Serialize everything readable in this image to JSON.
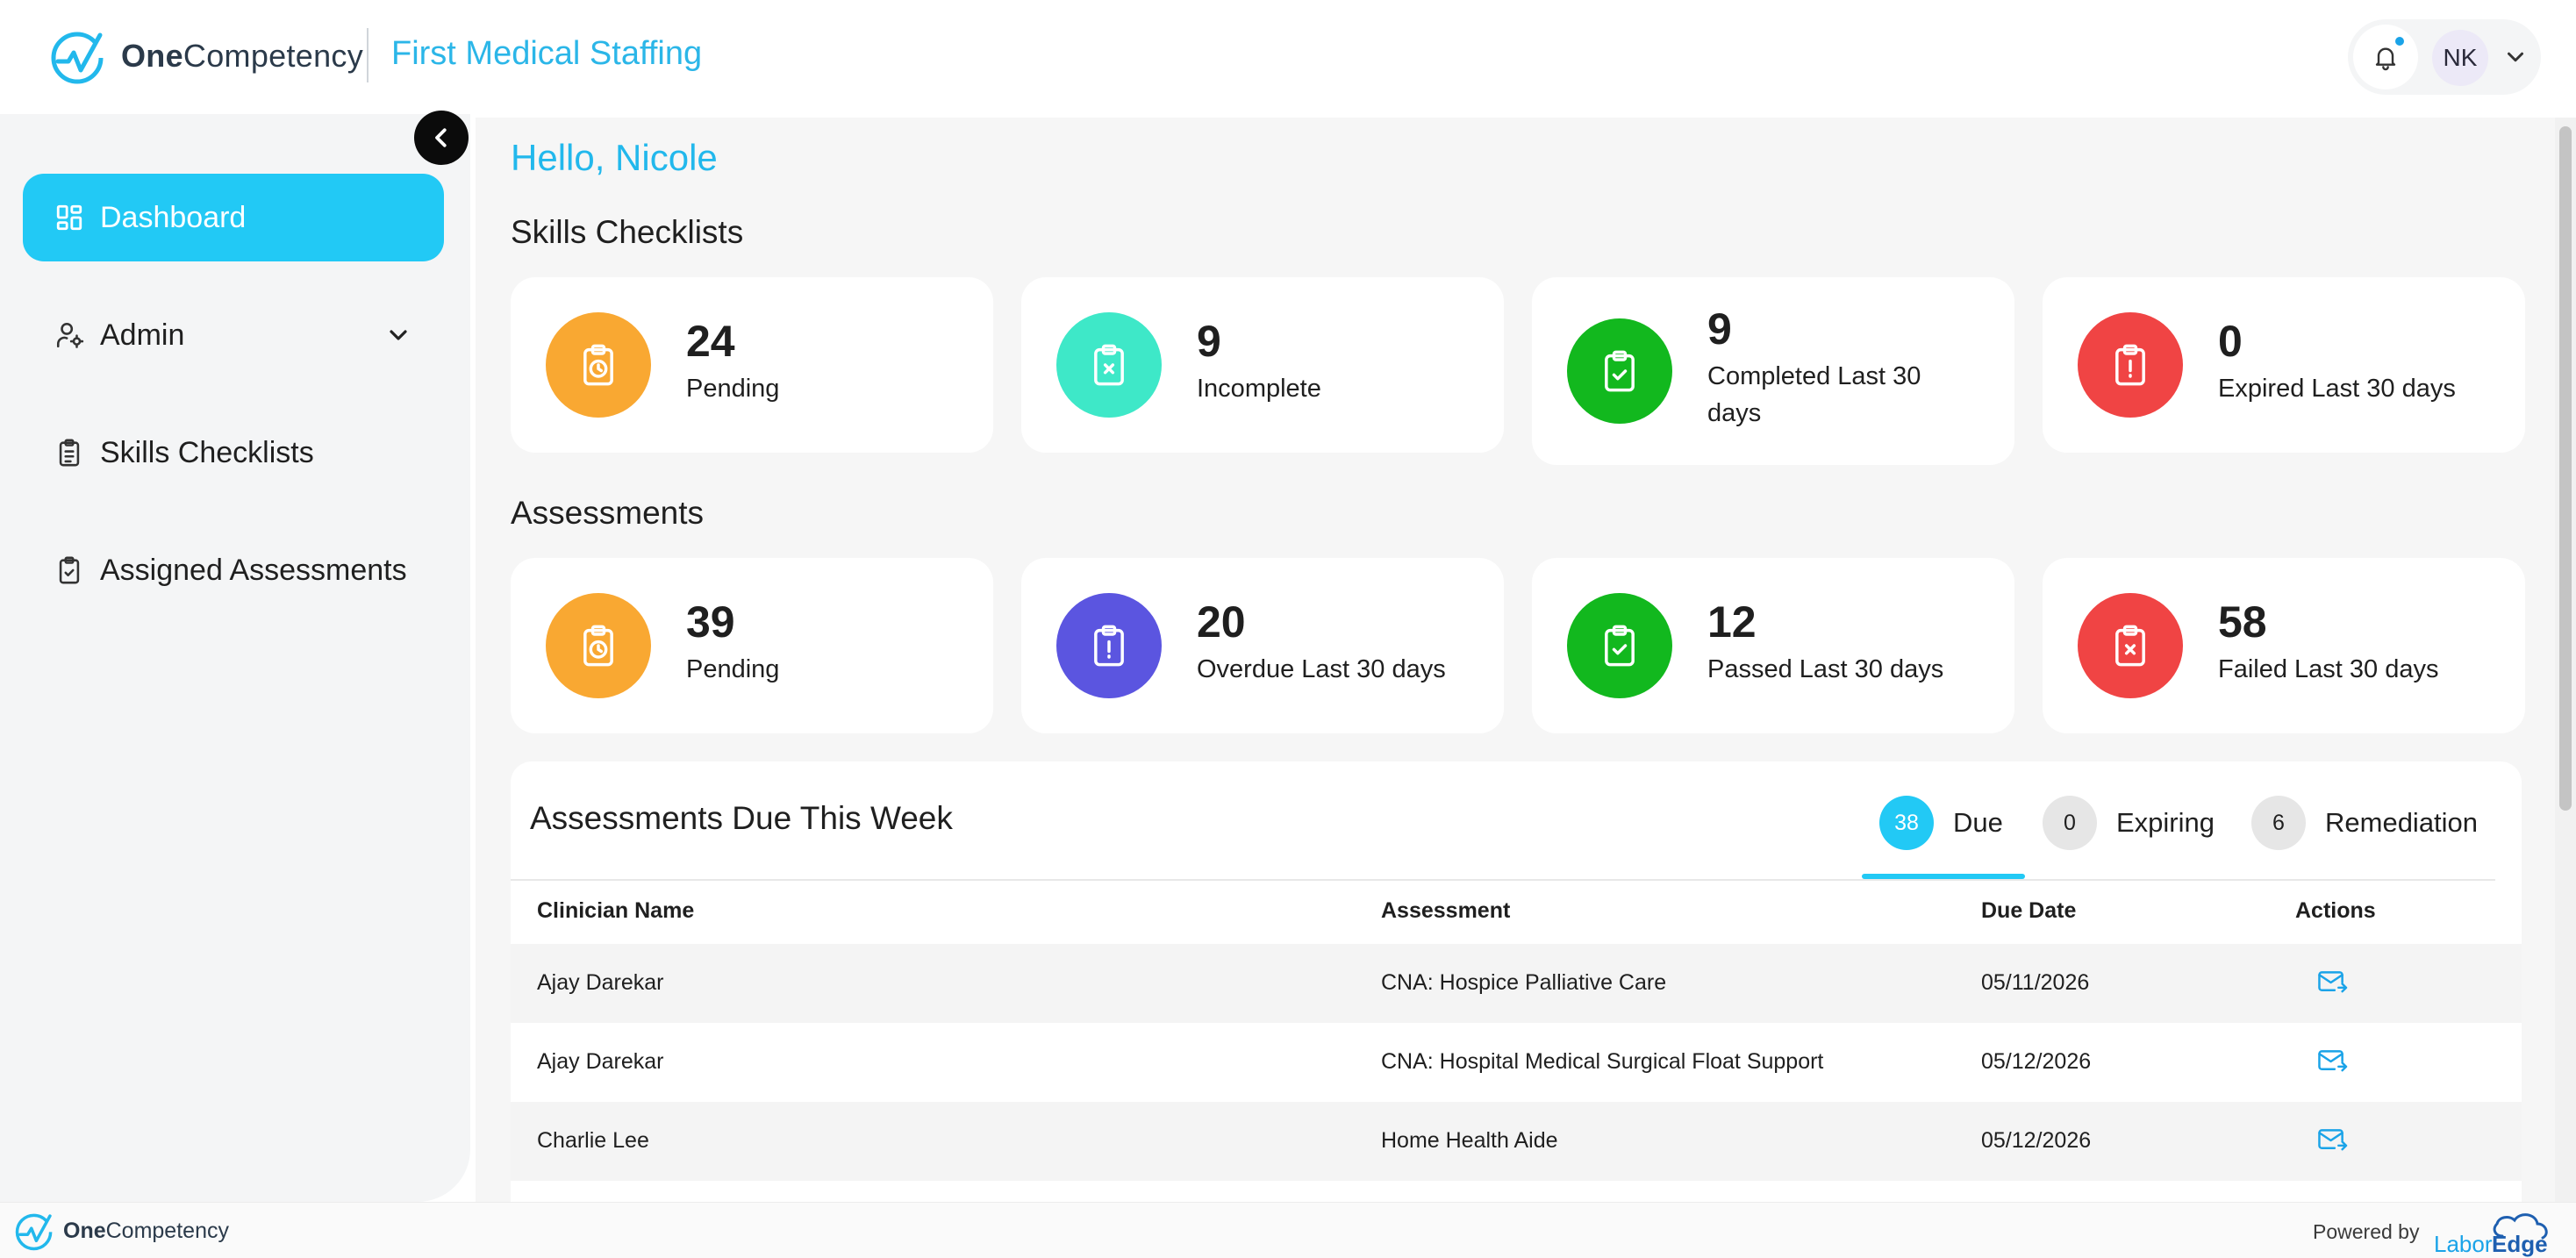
{
  "header": {
    "logo_bold": "One",
    "logo_regular": "Competency",
    "org_name": "First Medical Staffing",
    "avatar_initials": "NK"
  },
  "sidebar": {
    "items": [
      {
        "label": "Dashboard",
        "active": true
      },
      {
        "label": "Admin",
        "has_submenu": true
      },
      {
        "label": "Skills Checklists"
      },
      {
        "label": "Assigned Assessments"
      }
    ]
  },
  "main": {
    "greeting": "Hello, Nicole",
    "skills_section_title": "Skills Checklists",
    "skills_cards": [
      {
        "count": "24",
        "label": "Pending",
        "color": "#f9a832",
        "icon": "clipboard-clock-icon"
      },
      {
        "count": "9",
        "label": "Incomplete",
        "color": "#3ee8c8",
        "icon": "clipboard-x-icon"
      },
      {
        "count": "9",
        "label": "Completed Last 30 days",
        "color": "#12b81e",
        "icon": "clipboard-check-icon"
      },
      {
        "count": "0",
        "label": "Expired Last 30 days",
        "color": "#f04444",
        "icon": "clipboard-alert-icon"
      }
    ],
    "assessments_section_title": "Assessments",
    "assessment_cards": [
      {
        "count": "39",
        "label": "Pending",
        "color": "#f9a832",
        "icon": "clipboard-clock-icon"
      },
      {
        "count": "20",
        "label": "Overdue Last 30 days",
        "color": "#5b55e0",
        "icon": "clipboard-alert-icon"
      },
      {
        "count": "12",
        "label": "Passed Last 30 days",
        "color": "#12b81e",
        "icon": "clipboard-check-icon"
      },
      {
        "count": "58",
        "label": "Failed Last 30 days",
        "color": "#f04444",
        "icon": "clipboard-x-icon"
      }
    ]
  },
  "due_panel": {
    "title": "Assessments Due This Week",
    "tabs": [
      {
        "count": "38",
        "label": "Due",
        "active": true
      },
      {
        "count": "0",
        "label": "Expiring"
      },
      {
        "count": "6",
        "label": "Remediation"
      }
    ],
    "columns": [
      "Clinician Name",
      "Assessment",
      "Due Date",
      "Actions"
    ],
    "rows": [
      {
        "clinician": "Ajay Darekar",
        "assessment": "CNA: Hospice Palliative Care",
        "due": "05/11/2026"
      },
      {
        "clinician": "Ajay Darekar",
        "assessment": "CNA: Hospital Medical Surgical Float Support",
        "due": "05/12/2026"
      },
      {
        "clinician": "Charlie Lee",
        "assessment": "Home Health Aide",
        "due": "05/12/2026"
      }
    ]
  },
  "footer": {
    "logo_bold": "One",
    "logo_regular": "Competency",
    "powered_by": "Powered by",
    "partner_logo_text": "LaborEdge"
  },
  "colors": {
    "accent": "#22c9f5",
    "brand_text": "#22b8ec"
  }
}
